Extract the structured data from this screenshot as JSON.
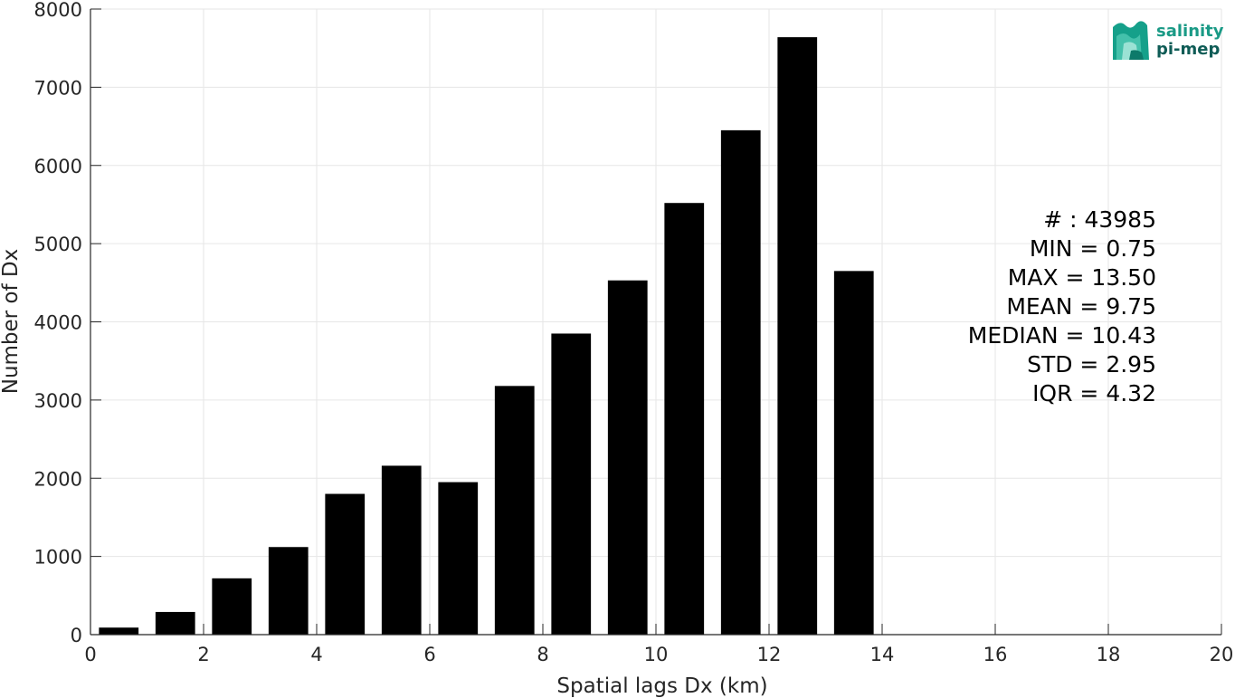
{
  "chart_data": {
    "type": "bar",
    "xlabel": "Spatial lags Dx (km)",
    "ylabel": "Number of Dx",
    "xlim": [
      0,
      20
    ],
    "ylim": [
      0,
      8000
    ],
    "xticks": [
      0,
      2,
      4,
      6,
      8,
      10,
      12,
      14,
      16,
      18,
      20
    ],
    "yticks": [
      0,
      1000,
      2000,
      3000,
      4000,
      5000,
      6000,
      7000,
      8000
    ],
    "grid": true,
    "bar_color": "#000000",
    "bins": [
      {
        "center": 0.5,
        "value": 90
      },
      {
        "center": 1.5,
        "value": 290
      },
      {
        "center": 2.5,
        "value": 720
      },
      {
        "center": 3.5,
        "value": 1120
      },
      {
        "center": 4.5,
        "value": 1800
      },
      {
        "center": 5.5,
        "value": 2160
      },
      {
        "center": 6.5,
        "value": 1950
      },
      {
        "center": 7.5,
        "value": 3180
      },
      {
        "center": 8.5,
        "value": 3850
      },
      {
        "center": 9.5,
        "value": 4530
      },
      {
        "center": 10.5,
        "value": 5520
      },
      {
        "center": 11.5,
        "value": 6450
      },
      {
        "center": 12.5,
        "value": 7640
      },
      {
        "center": 13.5,
        "value": 4650
      }
    ],
    "bin_width": 0.7,
    "annotations": [
      "# : 43985",
      "MIN = 0.75",
      "MAX =  13.50",
      "MEAN = 9.75",
      "MEDIAN = 10.43",
      "STD = 2.95",
      "IQR = 4.32"
    ]
  },
  "logo": {
    "line1": "salinity",
    "line2": "pi-mep",
    "accent": "#1a9a86",
    "dark": "#0f5c56"
  }
}
